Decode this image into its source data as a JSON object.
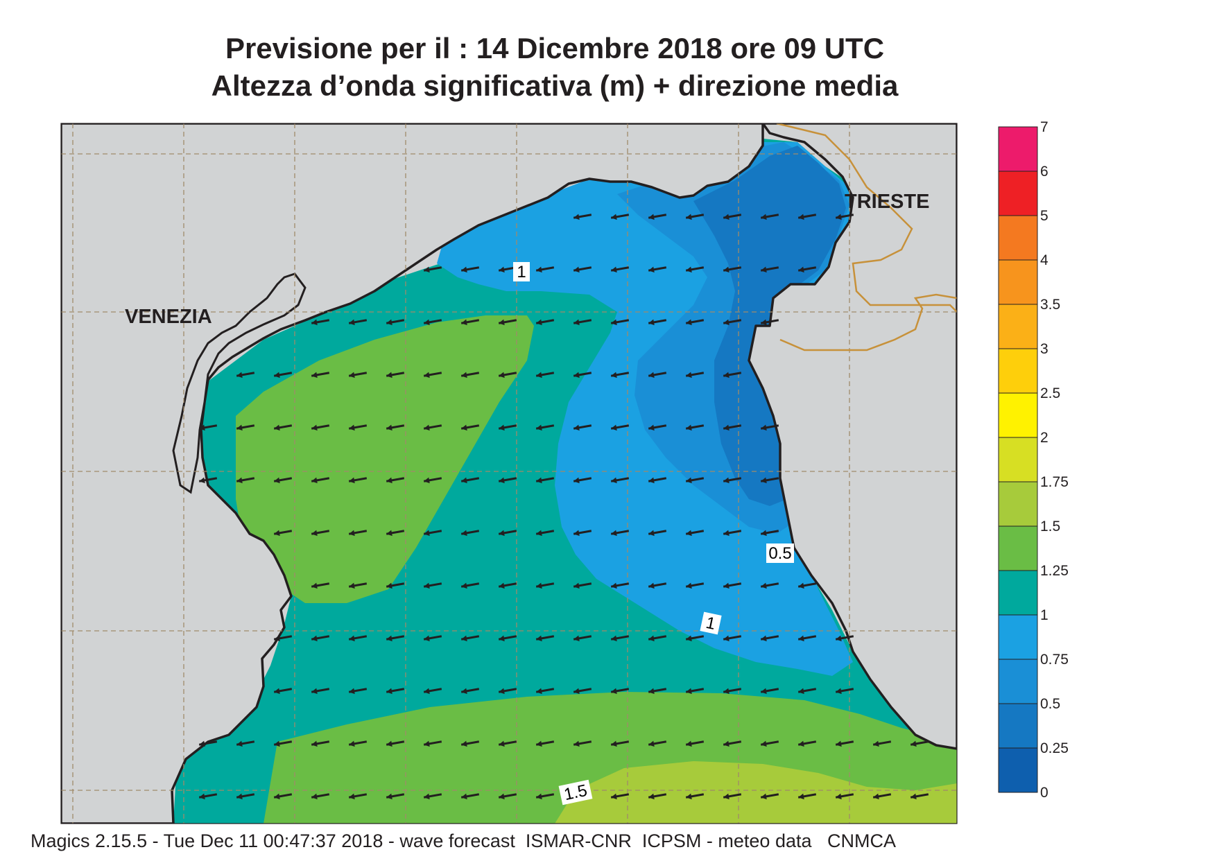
{
  "title_line1": "Previsione per il  :  14 Dicembre  2018   ore 09 UTC",
  "title_line2": "Altezza d’onda significativa (m) + direzione media",
  "footer": "Magics 2.15.5 - Tue Dec 11 00:47:37 2018 - wave forecast  ISMAR-CNR  ICPSM - meteo data   CNMCA",
  "cities": [
    "VENEZIA",
    "TRIESTE"
  ],
  "contour_labels": [
    "1",
    "0.5",
    "1",
    "1.5"
  ],
  "legend": {
    "ticks": [
      "7",
      "6",
      "5",
      "4",
      "3.5",
      "3",
      "2.5",
      "2",
      "1.75",
      "1.5",
      "1.25",
      "1",
      "0.75",
      "0.5",
      "0.25",
      "0"
    ],
    "colors": [
      "#ed1b6b",
      "#ee2025",
      "#f47920",
      "#f7941d",
      "#fbb017",
      "#fecf0b",
      "#fff200",
      "#d7df23",
      "#a7cb3b",
      "#6abd45",
      "#00a99d",
      "#1ba1e2",
      "#1a8fd6",
      "#1578c2",
      "#0e5fae"
    ]
  },
  "colors": {
    "land": "#d1d3d4",
    "grid": "#a08a6a",
    "border": "#c7913a",
    "coast": "#231f20",
    "arrow": "#231f20"
  },
  "wave_direction": "east-north-east to west-south-west"
}
